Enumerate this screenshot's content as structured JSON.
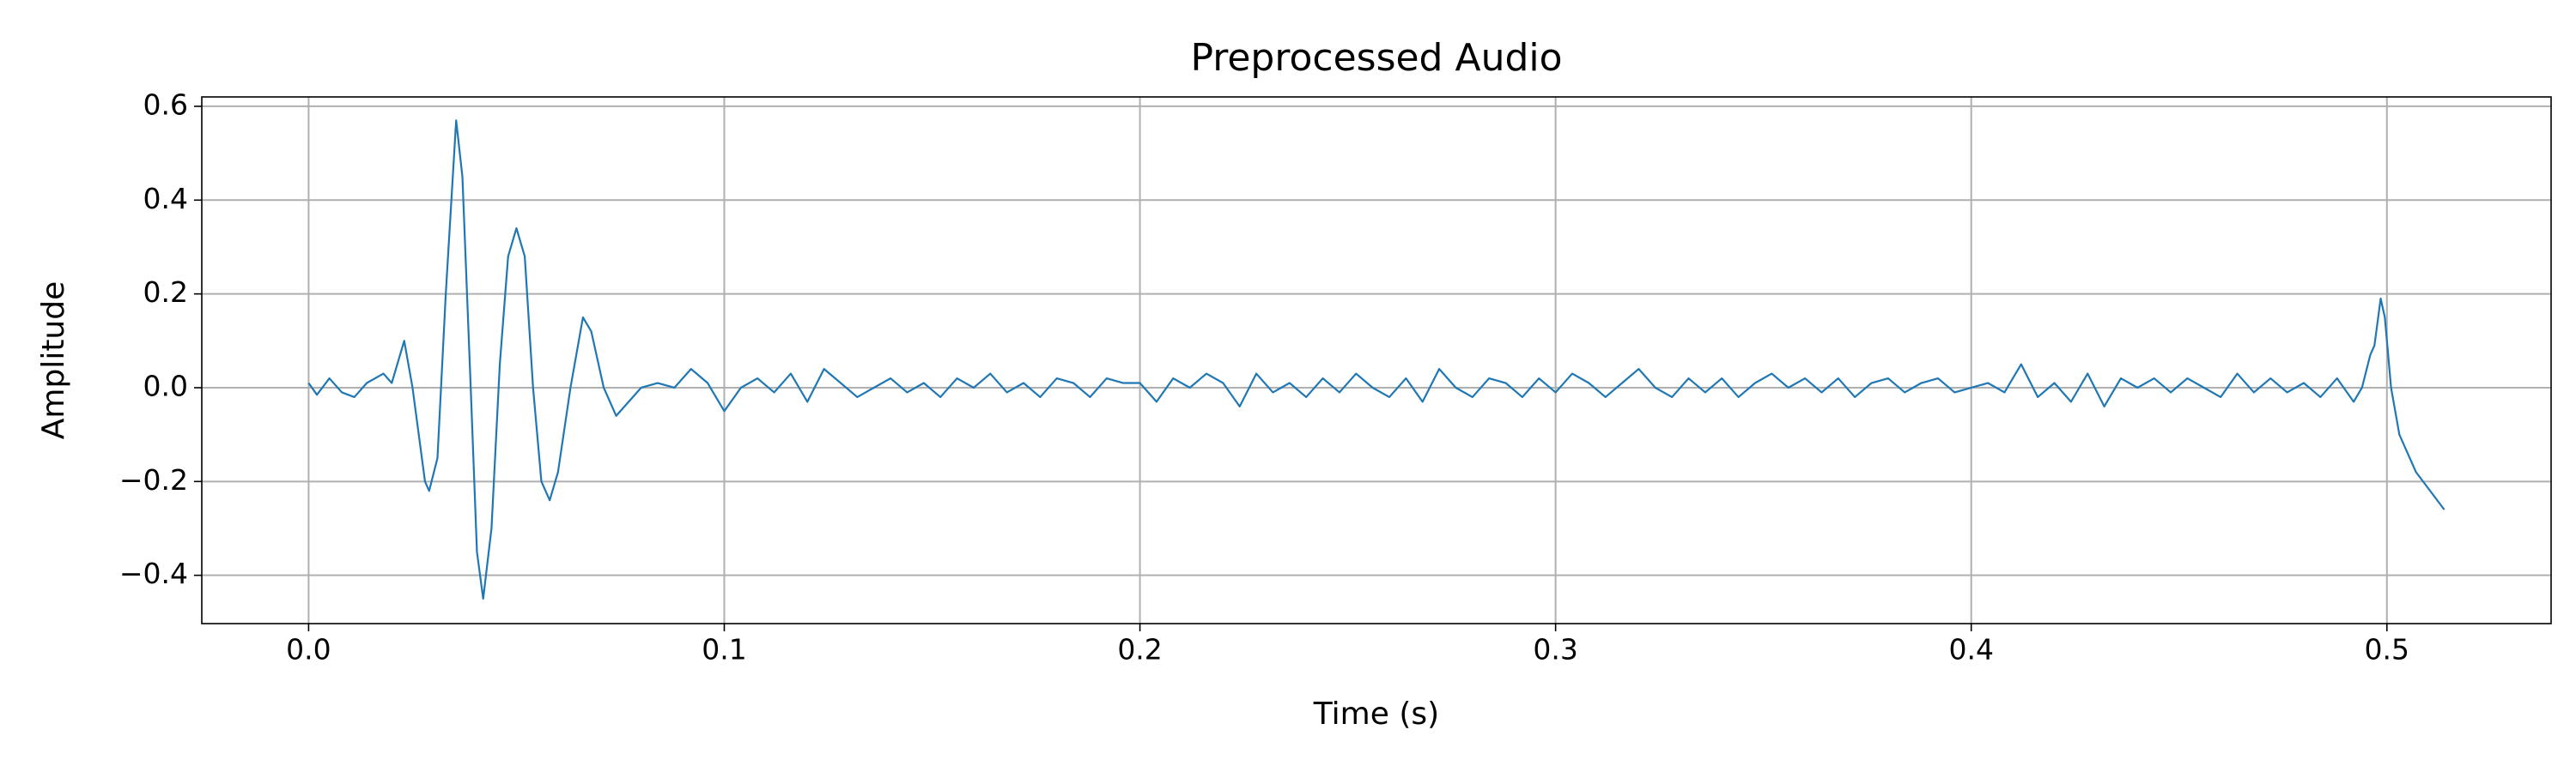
{
  "chart_data": {
    "type": "line",
    "title": "Preprocessed Audio",
    "xlabel": "Time (s)",
    "ylabel": "Amplitude",
    "xlim": [
      -0.0257,
      0.5395
    ],
    "ylim": [
      -0.503,
      0.62
    ],
    "xticks": [
      {
        "value": 0,
        "label": "0.0"
      },
      0.1,
      0.2,
      0.3,
      0.4,
      0.5
    ],
    "yticks": [
      {
        "value": -0.4,
        "label": "−0.4"
      },
      {
        "value": -0.2,
        "label": "−0.2"
      },
      {
        "value": 0,
        "label": "0.0"
      },
      0.2,
      0.4,
      0.6
    ],
    "grid": true,
    "series": [
      {
        "color": "#1f77b4",
        "x": [
          0.0,
          0.002,
          0.005,
          0.008,
          0.011,
          0.014,
          0.018,
          0.02,
          0.023,
          0.025,
          0.028,
          0.029,
          0.031,
          0.033,
          0.0355,
          0.037,
          0.039,
          0.0405,
          0.042,
          0.044,
          0.046,
          0.048,
          0.05,
          0.052,
          0.054,
          0.056,
          0.058,
          0.06,
          0.063,
          0.066,
          0.068,
          0.071,
          0.074,
          0.077,
          0.08,
          0.084,
          0.088,
          0.092,
          0.096,
          0.1,
          0.104,
          0.108,
          0.112,
          0.116,
          0.12,
          0.124,
          0.128,
          0.132,
          0.136,
          0.14,
          0.144,
          0.148,
          0.152,
          0.156,
          0.16,
          0.164,
          0.168,
          0.172,
          0.176,
          0.18,
          0.184,
          0.188,
          0.192,
          0.196,
          0.2,
          0.204,
          0.208,
          0.212,
          0.216,
          0.22,
          0.224,
          0.228,
          0.232,
          0.236,
          0.24,
          0.244,
          0.248,
          0.252,
          0.256,
          0.26,
          0.264,
          0.268,
          0.272,
          0.276,
          0.28,
          0.284,
          0.288,
          0.292,
          0.296,
          0.3,
          0.304,
          0.308,
          0.312,
          0.316,
          0.32,
          0.324,
          0.328,
          0.332,
          0.336,
          0.34,
          0.344,
          0.348,
          0.352,
          0.356,
          0.36,
          0.364,
          0.368,
          0.372,
          0.376,
          0.38,
          0.384,
          0.388,
          0.392,
          0.396,
          0.4,
          0.404,
          0.408,
          0.412,
          0.416,
          0.42,
          0.424,
          0.428,
          0.432,
          0.436,
          0.44,
          0.444,
          0.448,
          0.452,
          0.456,
          0.46,
          0.464,
          0.468,
          0.472,
          0.476,
          0.48,
          0.484,
          0.488,
          0.492,
          0.494,
          0.496,
          0.497,
          0.4985,
          0.4995,
          0.501,
          0.503,
          0.507,
          0.5138
        ],
        "values": [
          0.01,
          -0.015,
          0.02,
          -0.01,
          -0.02,
          0.01,
          0.03,
          0.01,
          0.1,
          0.0,
          -0.2,
          -0.22,
          -0.15,
          0.2,
          0.57,
          0.45,
          0.0,
          -0.35,
          -0.45,
          -0.3,
          0.05,
          0.28,
          0.34,
          0.28,
          0.0,
          -0.2,
          -0.24,
          -0.18,
          0.0,
          0.15,
          0.12,
          0.0,
          -0.06,
          -0.03,
          0.0,
          0.01,
          0.0,
          0.04,
          0.01,
          -0.05,
          0.0,
          0.02,
          -0.01,
          0.03,
          -0.03,
          0.04,
          0.01,
          -0.02,
          0.0,
          0.02,
          -0.01,
          0.01,
          -0.02,
          0.02,
          0.0,
          0.03,
          -0.01,
          0.01,
          -0.02,
          0.02,
          0.01,
          -0.02,
          0.02,
          0.01,
          0.01,
          -0.03,
          0.02,
          0.0,
          0.03,
          0.01,
          -0.04,
          0.03,
          -0.01,
          0.01,
          -0.02,
          0.02,
          -0.01,
          0.03,
          0.0,
          -0.02,
          0.02,
          -0.03,
          0.04,
          0.0,
          -0.02,
          0.02,
          0.01,
          -0.02,
          0.02,
          -0.01,
          0.03,
          0.01,
          -0.02,
          0.01,
          0.04,
          0.0,
          -0.02,
          0.02,
          -0.01,
          0.02,
          -0.02,
          0.01,
          0.03,
          0.0,
          0.02,
          -0.01,
          0.02,
          -0.02,
          0.01,
          0.02,
          -0.01,
          0.01,
          0.02,
          -0.01,
          0.0,
          0.01,
          -0.01,
          0.05,
          -0.02,
          0.01,
          -0.03,
          0.03,
          -0.04,
          0.02,
          0.0,
          0.02,
          -0.01,
          0.02,
          0.0,
          -0.02,
          0.03,
          -0.01,
          0.02,
          -0.01,
          0.01,
          -0.02,
          0.02,
          -0.03,
          0.0,
          0.07,
          0.09,
          0.19,
          0.15,
          0.0,
          -0.1,
          -0.18,
          -0.26
        ]
      }
    ]
  }
}
